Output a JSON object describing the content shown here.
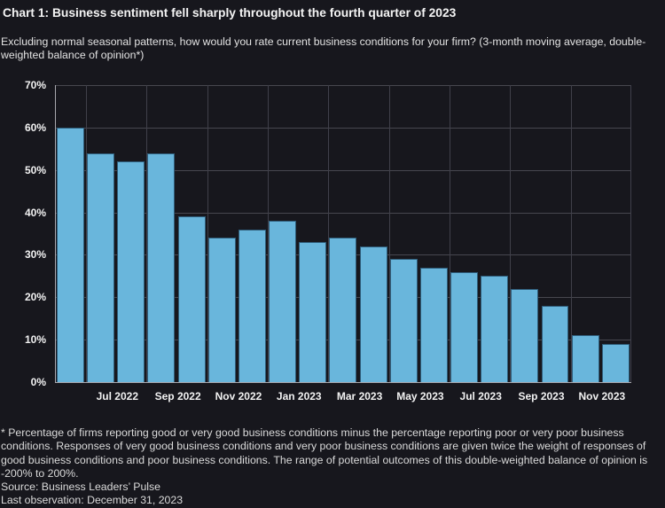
{
  "title": "Chart 1: Business sentiment fell sharply throughout the fourth quarter of 2023",
  "subtitle": "Excluding normal seasonal patterns, how would you rate current business conditions for your firm? (3-month moving average, double-weighted balance of opinion*)",
  "footnote": "* Percentage of firms reporting good or very good business conditions minus the percentage reporting poor or very poor business conditions. Responses of very good business conditions and very poor business conditions are given twice the weight of responses of good business conditions and poor business conditions. The range of potential outcomes of this double-weighted balance of opinion is -200% to 200%.",
  "source": "Source: Business Leaders’ Pulse",
  "last_observation": "Last observation: December 31, 2023",
  "chart_data": {
    "type": "bar",
    "title": "Chart 1: Business sentiment fell sharply throughout the fourth quarter of 2023",
    "subtitle": "Excluding normal seasonal patterns, how would you rate current business conditions for your firm? (3-month moving average, double-weighted balance of opinion*)",
    "x": [
      "May 2022",
      "Jun 2022",
      "Jul 2022",
      "Aug 2022",
      "Sep 2022",
      "Oct 2022",
      "Nov 2022",
      "Dec 2022",
      "Jan 2023",
      "Feb 2023",
      "Mar 2023",
      "Apr 2023",
      "May 2023",
      "Jun 2023",
      "Jul 2023",
      "Aug 2023",
      "Sep 2023",
      "Oct 2023",
      "Nov 2023"
    ],
    "values": [
      60,
      54,
      52,
      54,
      39,
      34,
      36,
      38,
      33,
      34,
      32,
      29,
      27,
      26,
      25,
      22,
      18,
      11,
      9
    ],
    "x_tick_labels": [
      "Jul 2022",
      "Sep 2022",
      "Nov 2022",
      "Jan 2023",
      "Mar 2023",
      "May 2023",
      "Jul 2023",
      "Sep 2023",
      "Nov 2023"
    ],
    "y_tick_labels": [
      "0%",
      "10%",
      "20%",
      "30%",
      "40%",
      "50%",
      "60%",
      "70%"
    ],
    "xlabel": "",
    "ylabel": "",
    "ylim": [
      0,
      70
    ],
    "ytick_step": 10,
    "grid": true,
    "legend": false,
    "bar_color": "#69b6dc",
    "bar_border_color": "#2f5d7a",
    "background_color": "#17171d",
    "gridline_color": "#47474f",
    "axis_color": "#a8a8ae"
  }
}
